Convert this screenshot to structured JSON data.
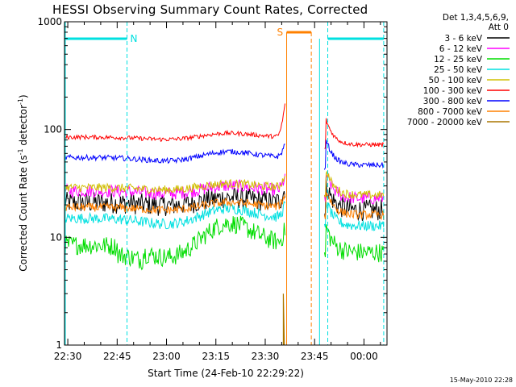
{
  "chart_data": {
    "type": "line",
    "title": "HESSI Observing Summary Count Rates, Corrected",
    "xlabel": "Start Time (24-Feb-10 22:29:22)",
    "ylabel_main": "Corrected Count Rate (s",
    "ylabel_sup1": "-1",
    "ylabel_mid": " detector",
    "ylabel_sup2": "-1",
    "ylabel_end": ")",
    "y_scale": "log",
    "ylim": [
      1,
      1000
    ],
    "xlim": [
      "22:29",
      "00:07"
    ],
    "x_tick_labels": [
      "22:30",
      "22:45",
      "23:00",
      "23:15",
      "23:30",
      "23:45",
      "00:00"
    ],
    "x_tick_minutes": [
      1,
      16,
      31,
      46,
      61,
      76,
      91
    ],
    "y_tick_labels": [
      "1",
      "10",
      "100",
      "1000"
    ],
    "y_tick_values": [
      1,
      10,
      100,
      1000
    ],
    "legend_header": [
      "Det 1,3,4,5,6,9,",
      "Att 0"
    ],
    "legend_placement": "right",
    "series": [
      {
        "name": "3 - 6 keV",
        "color": "#000000",
        "base": 21
      },
      {
        "name": "6 - 12 keV",
        "color": "#ff00ff",
        "base": 27
      },
      {
        "name": "12 - 25 keV",
        "color": "#00dd00",
        "base": 8.5
      },
      {
        "name": "25 - 50 keV",
        "color": "#00e0e0",
        "base": 15
      },
      {
        "name": "50 - 100 keV",
        "color": "#d0c000",
        "base": 29
      },
      {
        "name": "100 - 300 keV",
        "color": "#ff0000",
        "base": 85
      },
      {
        "name": "300 - 800 keV",
        "color": "#0000ff",
        "base": 55
      },
      {
        "name": "800 - 7000 keV",
        "color": "#ff8000",
        "base": 19
      },
      {
        "name": "7000 - 20000 keV",
        "color": "#aa7700",
        "base": 0
      }
    ],
    "night_markers": {
      "label": "N",
      "color": "#00e0e0",
      "spans": [
        [
          0,
          19
        ],
        [
          80,
          97
        ]
      ]
    },
    "saa_marker": {
      "label": "S",
      "color": "#ff8000",
      "span": [
        67.5,
        75
      ]
    },
    "footer_date": "15-May-2010 22:28"
  }
}
